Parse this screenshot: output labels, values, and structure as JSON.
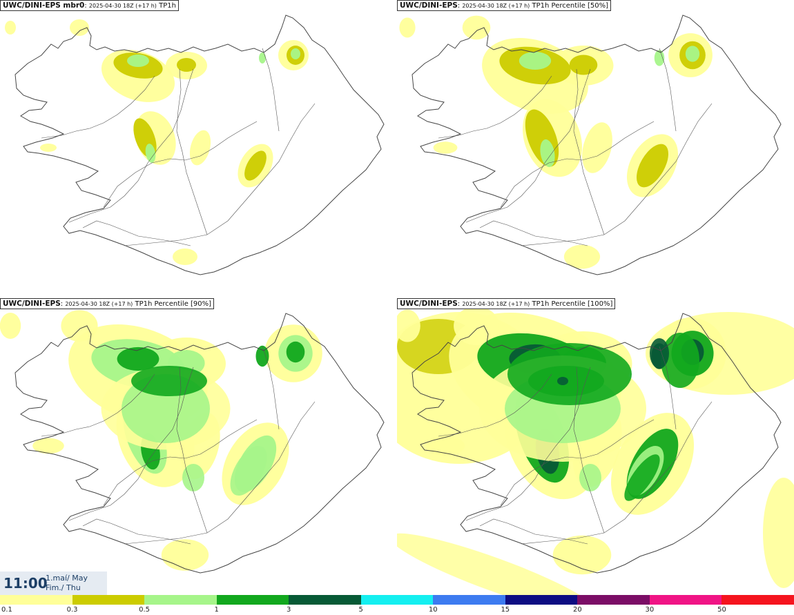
{
  "panels": [
    {
      "id": "mbr0",
      "title_source": "UWC/DINI-EPS mbr0",
      "title_run": "2025-04-30 18Z (+17 h)",
      "title_field": "TP1h",
      "level": 0
    },
    {
      "id": "p50",
      "title_source": "UWC/DINI-EPS",
      "title_run": "2025-04-30 18Z (+17 h)",
      "title_field": "TP1h Percentile [50%]",
      "level": 1
    },
    {
      "id": "p90",
      "title_source": "UWC/DINI-EPS",
      "title_run": "2025-04-30 18Z (+17 h)",
      "title_field": "TP1h Percentile [90%]",
      "level": 2
    },
    {
      "id": "p100",
      "title_source": "UWC/DINI-EPS",
      "title_run": "2025-04-30 18Z (+17 h)",
      "title_field": "TP1h Percentile [100%]",
      "level": 3
    }
  ],
  "time": {
    "clock": "11:00",
    "date_line1": "1.maí/ May",
    "date_line2": "Fim./ Thu"
  },
  "legend": {
    "colors": [
      "#ffff99",
      "#cccc00",
      "#a6f58a",
      "#12a81e",
      "#075a36",
      "#14eff0",
      "#3d7bf0",
      "#0d0d82",
      "#7b0d66",
      "#f01485",
      "#f5141e"
    ],
    "ticks": [
      "0.1",
      "0.3",
      "0.5",
      "1",
      "3",
      "5",
      "10",
      "15",
      "20",
      "30",
      "50"
    ]
  },
  "colors": {
    "coast": "#444444",
    "roads": "#555555",
    "time_text": "#1d3f66"
  }
}
